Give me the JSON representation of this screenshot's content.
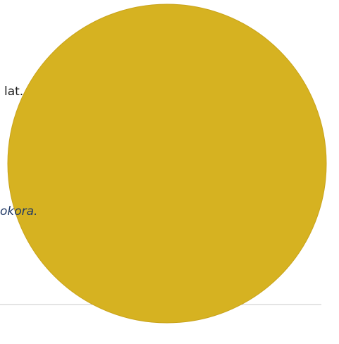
{
  "texts": [
    "lat.",
    "okora."
  ]
}
